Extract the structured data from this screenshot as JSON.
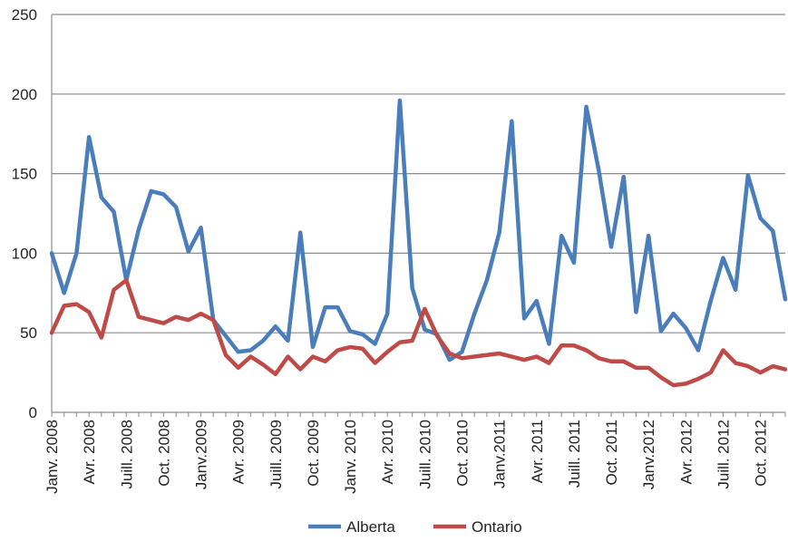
{
  "chart_data": {
    "type": "line",
    "title": "",
    "xlabel": "",
    "ylabel": "",
    "ylim": [
      0,
      250
    ],
    "yticks": [
      0,
      50,
      100,
      150,
      200,
      250
    ],
    "grid": true,
    "legend_position": "bottom",
    "x_tick_labels": [
      {
        "index": 0,
        "label": "Janv. 2008"
      },
      {
        "index": 3,
        "label": "Avr. 2008"
      },
      {
        "index": 6,
        "label": "Juill. 2008"
      },
      {
        "index": 9,
        "label": "Oct. 2008"
      },
      {
        "index": 12,
        "label": "Janv.2009"
      },
      {
        "index": 15,
        "label": "Avr. 2009"
      },
      {
        "index": 18,
        "label": "Juill. 2009"
      },
      {
        "index": 21,
        "label": "Oct. 2009"
      },
      {
        "index": 24,
        "label": "Janv. 2010"
      },
      {
        "index": 27,
        "label": "Avr. 2010"
      },
      {
        "index": 30,
        "label": "Juill. 2010"
      },
      {
        "index": 33,
        "label": "Oct. 2010"
      },
      {
        "index": 36,
        "label": "Janv.2011"
      },
      {
        "index": 39,
        "label": "Avr. 2011"
      },
      {
        "index": 42,
        "label": "Juill. 2011"
      },
      {
        "index": 45,
        "label": "Oct. 2011"
      },
      {
        "index": 48,
        "label": "Janv.2012"
      },
      {
        "index": 51,
        "label": "Avr. 2012"
      },
      {
        "index": 54,
        "label": "Juill. 2012"
      },
      {
        "index": 57,
        "label": "Oct. 2012"
      }
    ],
    "series": [
      {
        "name": "Alberta",
        "color": "#4a7ebb",
        "values": [
          100,
          75,
          100,
          173,
          135,
          126,
          83,
          115,
          139,
          137,
          129,
          101,
          116,
          58,
          48,
          38,
          39,
          45,
          54,
          45,
          113,
          41,
          66,
          66,
          51,
          49,
          43,
          62,
          196,
          78,
          52,
          49,
          33,
          38,
          62,
          83,
          113,
          183,
          59,
          70,
          43,
          111,
          94,
          192,
          152,
          104,
          148,
          63,
          111,
          51,
          62,
          53,
          39,
          70,
          97,
          77,
          149,
          122,
          114,
          71
        ]
      },
      {
        "name": "Ontario",
        "color": "#be4b48",
        "values": [
          50,
          67,
          68,
          63,
          47,
          77,
          83,
          60,
          58,
          56,
          60,
          58,
          62,
          58,
          36,
          28,
          35,
          30,
          24,
          35,
          27,
          35,
          32,
          39,
          41,
          40,
          31,
          38,
          44,
          45,
          65,
          48,
          37,
          34,
          35,
          36,
          37,
          35,
          33,
          35,
          31,
          42,
          42,
          39,
          34,
          32,
          32,
          28,
          28,
          22,
          17,
          18,
          21,
          25,
          39,
          31,
          29,
          25,
          29,
          27
        ]
      }
    ]
  }
}
